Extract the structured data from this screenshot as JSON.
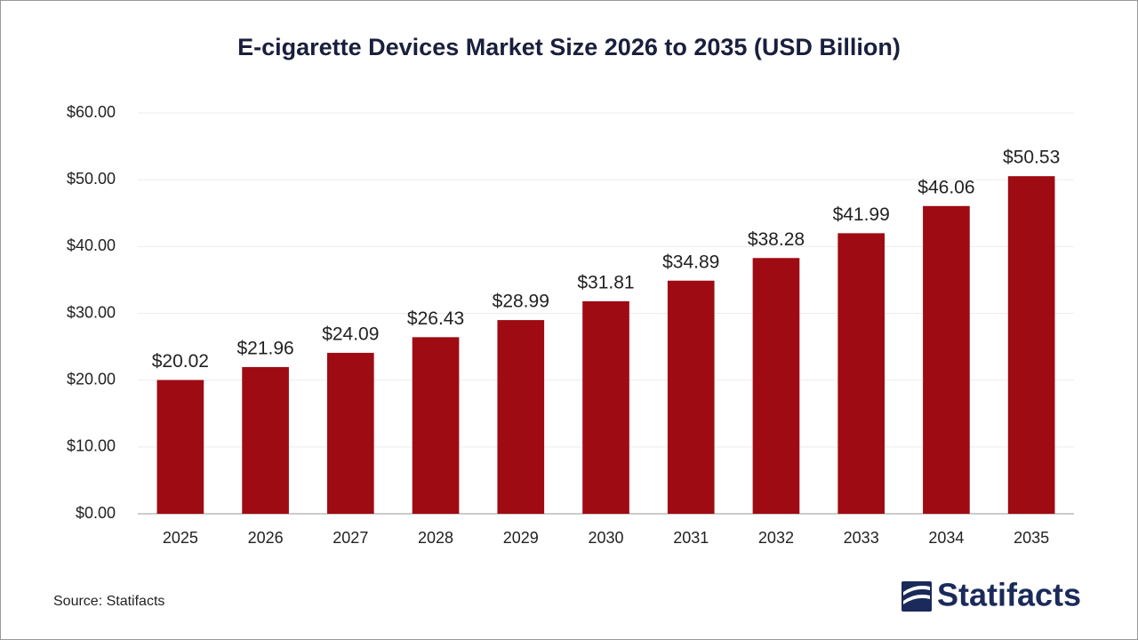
{
  "chart_data": {
    "type": "bar",
    "title": "E-cigarette Devices Market Size 2026 to 2035 (USD Billion)",
    "categories": [
      "2025",
      "2026",
      "2027",
      "2028",
      "2029",
      "2030",
      "2031",
      "2032",
      "2033",
      "2034",
      "2035"
    ],
    "values": [
      20.02,
      21.96,
      24.09,
      26.43,
      28.99,
      31.81,
      34.89,
      38.28,
      41.99,
      46.06,
      50.53
    ],
    "value_labels": [
      "$20.02",
      "$21.96",
      "$24.09",
      "$26.43",
      "$28.99",
      "$31.81",
      "$34.89",
      "$38.28",
      "$41.99",
      "$46.06",
      "$50.53"
    ],
    "color": "#9e0b12",
    "ylim": [
      0,
      60
    ],
    "yticks": [
      {
        "value": 0,
        "label": "$0.00"
      },
      {
        "value": 10,
        "label": "$10.00"
      },
      {
        "value": 20,
        "label": "$20.00"
      },
      {
        "value": 30,
        "label": "$30.00"
      },
      {
        "value": 40,
        "label": "$40.00"
      },
      {
        "value": 50,
        "label": "$50.00"
      },
      {
        "value": 60,
        "label": "$60.00"
      }
    ],
    "grid": true,
    "source": "Source: Statifacts",
    "brand": "Statifacts"
  }
}
